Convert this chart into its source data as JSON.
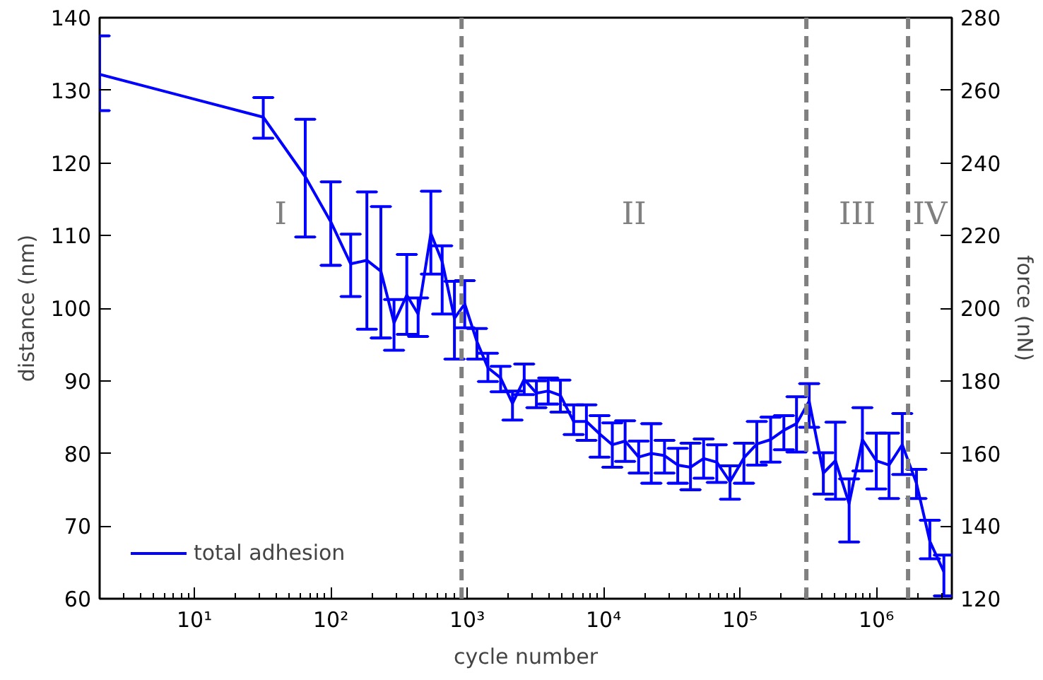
{
  "chart_data": {
    "type": "line",
    "xlabel": "cycle number",
    "ylabel": "distance (nm)",
    "y2label": "force (nN)",
    "log": "x",
    "grid": false,
    "legend": "bottom left",
    "xlim": [
      2.02,
      3580000
    ],
    "xticks": [
      {
        "value": 10,
        "label": "10¹"
      },
      {
        "value": 100,
        "label": "10²"
      },
      {
        "value": 1000,
        "label": "10³"
      },
      {
        "value": 10000,
        "label": "10⁴"
      },
      {
        "value": 100000,
        "label": "10⁵"
      },
      {
        "value": 1000000,
        "label": "10⁶"
      }
    ],
    "ylim": [
      60,
      140
    ],
    "yticks": [
      60,
      70,
      80,
      90,
      100,
      110,
      120,
      130,
      140
    ],
    "y2lim": [
      120,
      280
    ],
    "y2ticks": [
      120,
      140,
      160,
      180,
      200,
      220,
      240,
      260,
      280
    ],
    "ref_lines": [
      {
        "axis": "x",
        "value": 910,
        "color": "#808080",
        "line_style": "dashed"
      },
      {
        "axis": "x",
        "value": 307000,
        "color": "#808080",
        "line_style": "dashed"
      },
      {
        "axis": "x",
        "value": 1710000,
        "color": "#808080",
        "line_style": "dashed"
      }
    ],
    "annotations": [
      "I",
      "II",
      "III",
      "IV"
    ],
    "series": [
      {
        "name": "total adhesion",
        "color": "#0000ff",
        "x": [
          2.02,
          32,
          65,
          100,
          140,
          184,
          233,
          291,
          361,
          437,
          542,
          656,
          807,
          960,
          1180,
          1420,
          1760,
          2150,
          2620,
          3220,
          3930,
          4830,
          6040,
          7490,
          9350,
          11600,
          14400,
          18100,
          22400,
          28000,
          35000,
          43400,
          54200,
          67700,
          84600,
          107000,
          133000,
          168000,
          210000,
          260000,
          322000,
          409000,
          502000,
          632000,
          791000,
          1000000,
          1240000,
          1550000,
          1970000,
          2470000,
          3130000
        ],
        "values": [
          132.2,
          126.3,
          118.1,
          111.9,
          106.1,
          106.6,
          105.1,
          98.0,
          101.8,
          99.2,
          110.3,
          106.4,
          98.6,
          100.6,
          95.4,
          91.8,
          90.4,
          86.9,
          90.2,
          88.3,
          88.6,
          88.0,
          84.4,
          84.4,
          82.7,
          81.2,
          81.7,
          79.5,
          80.0,
          79.7,
          78.4,
          78.1,
          79.3,
          78.8,
          76.1,
          79.4,
          81.3,
          81.9,
          83.2,
          84.1,
          87.2,
          77.3,
          79.0,
          73.1,
          81.9,
          79.0,
          78.4,
          81.2,
          75.9,
          67.9,
          63.7
        ],
        "errors": [
          [
            127.2,
            137.5
          ],
          [
            123.4,
            129.0
          ],
          [
            109.8,
            126.0
          ],
          [
            105.9,
            117.4
          ],
          [
            101.6,
            110.2
          ],
          [
            97.1,
            116.0
          ],
          [
            95.9,
            114.0
          ],
          [
            94.2,
            101.2
          ],
          [
            96.4,
            107.4
          ],
          [
            96.1,
            101.4
          ],
          [
            104.7,
            116.1
          ],
          [
            99.2,
            108.6
          ],
          [
            93.0,
            103.7
          ],
          [
            97.3,
            103.8
          ],
          [
            93.0,
            97.2
          ],
          [
            89.9,
            93.8
          ],
          [
            88.5,
            92.0
          ],
          [
            84.6,
            88.6
          ],
          [
            88.1,
            92.3
          ],
          [
            86.3,
            90.0
          ],
          [
            86.8,
            90.4
          ],
          [
            85.7,
            90.1
          ],
          [
            82.6,
            86.7
          ],
          [
            81.8,
            86.7
          ],
          [
            79.5,
            85.2
          ],
          [
            78.1,
            84.2
          ],
          [
            78.9,
            84.5
          ],
          [
            77.3,
            81.7
          ],
          [
            75.9,
            84.1
          ],
          [
            77.3,
            81.8
          ],
          [
            75.9,
            80.7
          ],
          [
            75.0,
            81.4
          ],
          [
            76.6,
            82.0
          ],
          [
            76.0,
            81.2
          ],
          [
            73.7,
            78.3
          ],
          [
            75.9,
            81.4
          ],
          [
            78.4,
            84.4
          ],
          [
            78.8,
            85.0
          ],
          [
            80.5,
            85.2
          ],
          [
            80.2,
            87.8
          ],
          [
            83.6,
            89.6
          ],
          [
            74.4,
            80.1
          ],
          [
            73.7,
            84.3
          ],
          [
            67.8,
            76.5
          ],
          [
            77.6,
            86.3
          ],
          [
            75.1,
            82.8
          ],
          [
            73.8,
            82.8
          ],
          [
            77.1,
            85.5
          ],
          [
            73.8,
            77.8
          ],
          [
            65.5,
            70.8
          ],
          [
            60.4,
            66.0
          ]
        ]
      }
    ]
  }
}
